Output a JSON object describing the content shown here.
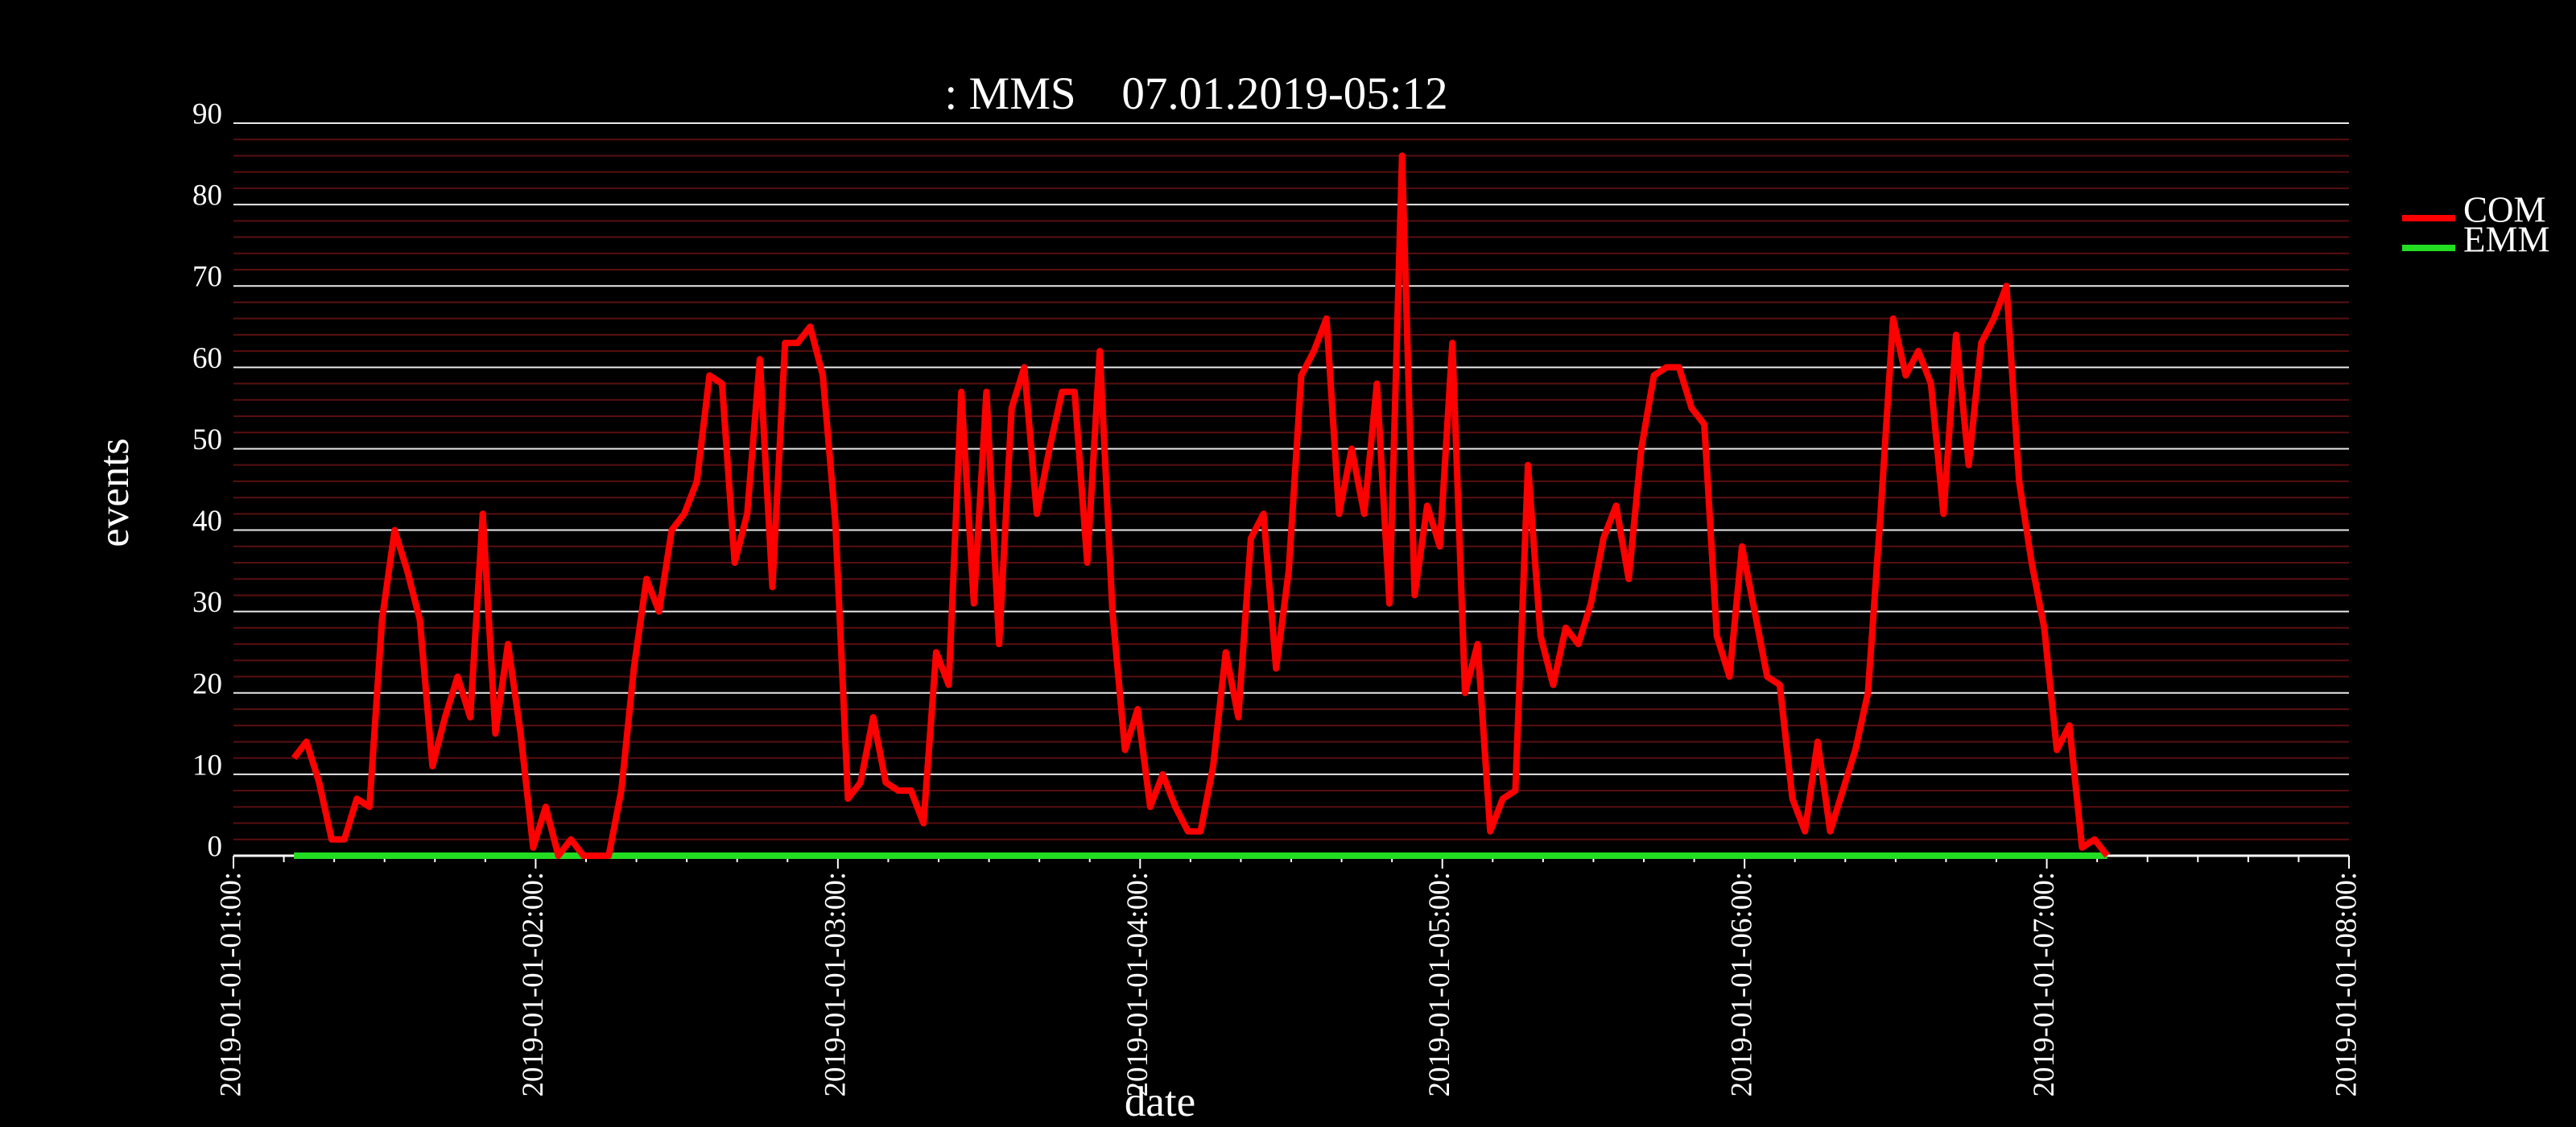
{
  "chart_data": {
    "type": "line",
    "title": ": MMS",
    "subtitle": "07.01.2019-05:12",
    "x_label": "date",
    "y_label": "events",
    "x": [
      "2019-01-01T01:12:00",
      "2019-01-01T01:14:30",
      "2019-01-01T01:17:00",
      "2019-01-01T01:19:30",
      "2019-01-01T01:22:00",
      "2019-01-01T01:24:30",
      "2019-01-01T01:27:00",
      "2019-01-01T01:29:30",
      "2019-01-01T01:32:00",
      "2019-01-01T01:34:30",
      "2019-01-01T01:37:00",
      "2019-01-01T01:39:30",
      "2019-01-01T01:42:00",
      "2019-01-01T01:44:30",
      "2019-01-01T01:47:00",
      "2019-01-01T01:49:30",
      "2019-01-01T01:52:00",
      "2019-01-01T01:54:30",
      "2019-01-01T01:57:00",
      "2019-01-01T01:59:30",
      "2019-01-01T02:02:00",
      "2019-01-01T02:04:30",
      "2019-01-01T02:07:00",
      "2019-01-01T02:09:30",
      "2019-01-01T02:12:00",
      "2019-01-01T02:14:30",
      "2019-01-01T02:17:00",
      "2019-01-01T02:19:30",
      "2019-01-01T02:22:00",
      "2019-01-01T02:24:30",
      "2019-01-01T02:27:00",
      "2019-01-01T02:29:30",
      "2019-01-01T02:32:00",
      "2019-01-01T02:34:30",
      "2019-01-01T02:37:00",
      "2019-01-01T02:39:30",
      "2019-01-01T02:42:00",
      "2019-01-01T02:44:30",
      "2019-01-01T02:47:00",
      "2019-01-01T02:49:30",
      "2019-01-01T02:52:00",
      "2019-01-01T02:54:30",
      "2019-01-01T02:57:00",
      "2019-01-01T02:59:30",
      "2019-01-01T03:02:00",
      "2019-01-01T03:04:30",
      "2019-01-01T03:07:00",
      "2019-01-01T03:09:30",
      "2019-01-01T03:12:00",
      "2019-01-01T03:14:30",
      "2019-01-01T03:17:00",
      "2019-01-01T03:19:30",
      "2019-01-01T03:22:00",
      "2019-01-01T03:24:30",
      "2019-01-01T03:27:00",
      "2019-01-01T03:29:30",
      "2019-01-01T03:32:00",
      "2019-01-01T03:34:30",
      "2019-01-01T03:37:00",
      "2019-01-01T03:39:30",
      "2019-01-01T03:42:00",
      "2019-01-01T03:44:30",
      "2019-01-01T03:47:00",
      "2019-01-01T03:49:30",
      "2019-01-01T03:52:00",
      "2019-01-01T03:54:30",
      "2019-01-01T03:57:00",
      "2019-01-01T03:59:30",
      "2019-01-01T04:02:00",
      "2019-01-01T04:04:30",
      "2019-01-01T04:07:00",
      "2019-01-01T04:09:30",
      "2019-01-01T04:12:00",
      "2019-01-01T04:14:30",
      "2019-01-01T04:17:00",
      "2019-01-01T04:19:30",
      "2019-01-01T04:22:00",
      "2019-01-01T04:24:30",
      "2019-01-01T04:27:00",
      "2019-01-01T04:29:30",
      "2019-01-01T04:32:00",
      "2019-01-01T04:34:30",
      "2019-01-01T04:37:00",
      "2019-01-01T04:39:30",
      "2019-01-01T04:42:00",
      "2019-01-01T04:44:30",
      "2019-01-01T04:47:00",
      "2019-01-01T04:49:30",
      "2019-01-01T04:52:00",
      "2019-01-01T04:54:30",
      "2019-01-01T04:57:00",
      "2019-01-01T04:59:30",
      "2019-01-01T05:02:00",
      "2019-01-01T05:04:30",
      "2019-01-01T05:07:00",
      "2019-01-01T05:09:30",
      "2019-01-01T05:12:00",
      "2019-01-01T05:14:30",
      "2019-01-01T05:17:00",
      "2019-01-01T05:19:30",
      "2019-01-01T05:22:00",
      "2019-01-01T05:24:30",
      "2019-01-01T05:27:00",
      "2019-01-01T05:29:30",
      "2019-01-01T05:32:00",
      "2019-01-01T05:34:30",
      "2019-01-01T05:37:00",
      "2019-01-01T05:39:30",
      "2019-01-01T05:42:00",
      "2019-01-01T05:44:30",
      "2019-01-01T05:47:00",
      "2019-01-01T05:49:30",
      "2019-01-01T05:52:00",
      "2019-01-01T05:54:30",
      "2019-01-01T05:57:00",
      "2019-01-01T05:59:30",
      "2019-01-01T06:02:00",
      "2019-01-01T06:04:30",
      "2019-01-01T06:07:00",
      "2019-01-01T06:09:30",
      "2019-01-01T06:12:00",
      "2019-01-01T06:14:30",
      "2019-01-01T06:17:00",
      "2019-01-01T06:19:30",
      "2019-01-01T06:22:00",
      "2019-01-01T06:24:30",
      "2019-01-01T06:27:00",
      "2019-01-01T06:29:30",
      "2019-01-01T06:32:00",
      "2019-01-01T06:34:30",
      "2019-01-01T06:37:00",
      "2019-01-01T06:39:30",
      "2019-01-01T06:42:00",
      "2019-01-01T06:44:30",
      "2019-01-01T06:47:00",
      "2019-01-01T06:49:30",
      "2019-01-01T06:52:00",
      "2019-01-01T06:54:30",
      "2019-01-01T06:57:00",
      "2019-01-01T06:59:30",
      "2019-01-01T07:02:00",
      "2019-01-01T07:04:30",
      "2019-01-01T07:07:00",
      "2019-01-01T07:09:30",
      "2019-01-01T07:12:00"
    ],
    "series": [
      {
        "name": "COM",
        "color": "#ff0000",
        "values": [
          12,
          14,
          9,
          2,
          2,
          7,
          6,
          29,
          40,
          35,
          29,
          11,
          17,
          22,
          17,
          42,
          15,
          26,
          15,
          1,
          6,
          0,
          2,
          0,
          0,
          0,
          8,
          23,
          34,
          30,
          40,
          42,
          46,
          59,
          58,
          36,
          42,
          61,
          33,
          63,
          63,
          65,
          59,
          41,
          7,
          9,
          17,
          9,
          8,
          8,
          4,
          25,
          21,
          57,
          31,
          57,
          26,
          55,
          60,
          42,
          50,
          57,
          57,
          36,
          62,
          30,
          13,
          18,
          6,
          10,
          6,
          3,
          3,
          11,
          25,
          17,
          39,
          42,
          23,
          35,
          59,
          62,
          66,
          42,
          50,
          42,
          58,
          31,
          86,
          32,
          43,
          38,
          63,
          20,
          26,
          3,
          7,
          8,
          48,
          27,
          21,
          28,
          26,
          31,
          39,
          43,
          34,
          50,
          59,
          60,
          60,
          55,
          53,
          27,
          22,
          38,
          30,
          22,
          21,
          7,
          3,
          14,
          3,
          8,
          13,
          20,
          42,
          66,
          59,
          62,
          58,
          42,
          64,
          48,
          63,
          66,
          70,
          46,
          36,
          28,
          13,
          16,
          1,
          2,
          0
        ]
      },
      {
        "name": "EMM",
        "color": "#22dd22",
        "values": [
          0,
          0,
          0,
          0,
          0,
          0,
          0,
          0,
          0,
          0,
          0,
          0,
          0,
          0,
          0,
          0,
          0,
          0,
          0,
          0,
          0,
          0,
          0,
          0,
          0,
          0,
          0,
          0,
          0,
          0,
          0,
          0,
          0,
          0,
          0,
          0,
          0,
          0,
          0,
          0,
          0,
          0,
          0,
          0,
          0,
          0,
          0,
          0,
          0,
          0,
          0,
          0,
          0,
          0,
          0,
          0,
          0,
          0,
          0,
          0,
          0,
          0,
          0,
          0,
          0,
          0,
          0,
          0,
          0,
          0,
          0,
          0,
          0,
          0,
          0,
          0,
          0,
          0,
          0,
          0,
          0,
          0,
          0,
          0,
          0,
          0,
          0,
          0,
          0,
          0,
          0,
          0,
          0,
          0,
          0,
          0,
          0,
          0,
          0,
          0,
          0,
          0,
          0,
          0,
          0,
          0,
          0,
          0,
          0,
          0,
          0,
          0,
          0,
          0,
          0,
          0,
          0,
          0,
          0,
          0,
          0,
          0,
          0,
          0,
          0,
          0,
          0,
          0,
          0,
          0,
          0,
          0,
          0,
          0,
          0,
          0,
          0,
          0,
          0,
          0,
          0,
          0,
          0,
          0,
          0
        ]
      }
    ],
    "xlim": [
      "2019-01-01T01:00:00",
      "2019-01-01T08:00:00"
    ],
    "xticks": [
      {
        "value": "2019-01-01T01:00:00",
        "label": "2019-01-01-01:00:"
      },
      {
        "value": "2019-01-01T02:00:00",
        "label": "2019-01-01-02:00:"
      },
      {
        "value": "2019-01-01T03:00:00",
        "label": "2019-01-01-03:00:"
      },
      {
        "value": "2019-01-01T04:00:00",
        "label": "2019-01-01-04:00:"
      },
      {
        "value": "2019-01-01T05:00:00",
        "label": "2019-01-01-05:00:"
      },
      {
        "value": "2019-01-01T06:00:00",
        "label": "2019-01-01-06:00:"
      },
      {
        "value": "2019-01-01T07:00:00",
        "label": "2019-01-01-07:00:"
      },
      {
        "value": "2019-01-01T08:00:00",
        "label": "2019-01-01-08:00:"
      }
    ],
    "ylim": [
      0,
      90
    ],
    "yticks": [
      0,
      10,
      20,
      30,
      40,
      50,
      60,
      70,
      80,
      90
    ],
    "grid": true,
    "minor_grid": true,
    "legend": "right"
  }
}
